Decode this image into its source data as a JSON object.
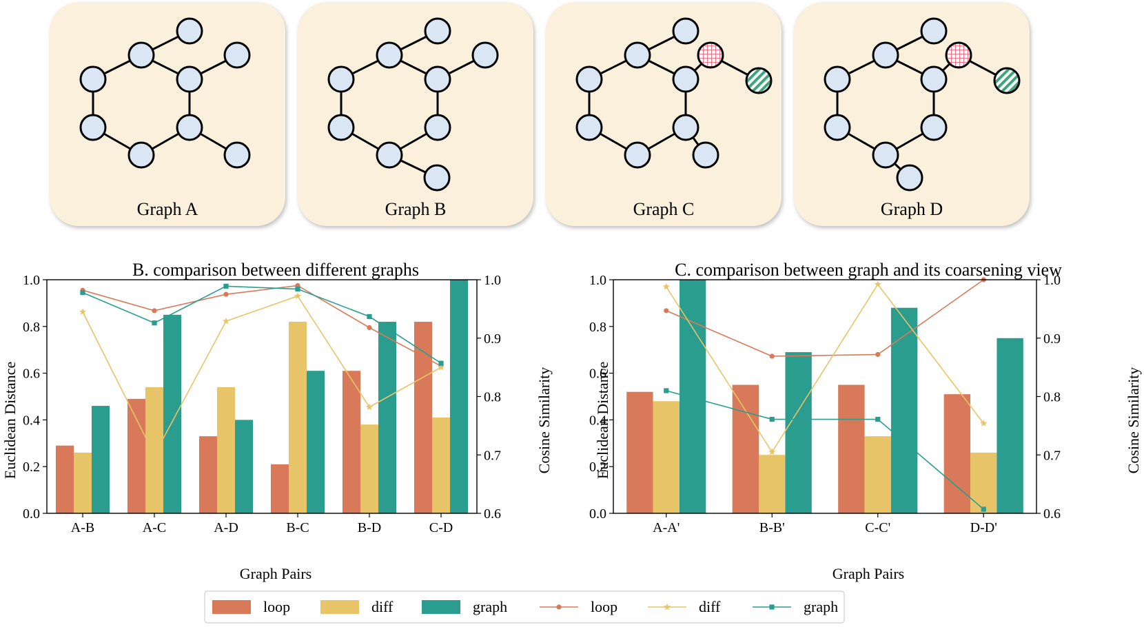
{
  "colors": {
    "loop": "#d87a5a",
    "diff": "#e8c468",
    "graph": "#2a9d8f",
    "panel_bg": "#fbf0dc",
    "node_fill": "#dbe6f5",
    "red_node": "#e8506a",
    "green_node": "#3aa878"
  },
  "graph_panels": [
    {
      "label": "Graph A"
    },
    {
      "label": "Graph B"
    },
    {
      "label": "Graph C"
    },
    {
      "label": "Graph D"
    }
  ],
  "chart_data": [
    {
      "type": "bar",
      "title": "B. comparison between different graphs",
      "xlabel": "Graph Pairs",
      "ylabel": "Euclidean Distance",
      "y2label": "Cosine Similarity",
      "ylim": [
        0,
        1.0
      ],
      "y2lim": [
        0.6,
        1.0
      ],
      "yticks": [
        "0.0",
        "0.2",
        "0.4",
        "0.6",
        "0.8",
        "1.0"
      ],
      "y2ticks": [
        "0.6",
        "0.7",
        "0.8",
        "0.9",
        "1.0"
      ],
      "categories": [
        "A-B",
        "A-C",
        "A-D",
        "B-C",
        "B-D",
        "C-D"
      ],
      "bar_series": [
        {
          "name": "loop",
          "values": [
            0.29,
            0.49,
            0.33,
            0.21,
            0.61,
            0.82
          ]
        },
        {
          "name": "diff",
          "values": [
            0.26,
            0.54,
            0.54,
            0.82,
            0.38,
            0.41
          ]
        },
        {
          "name": "graph",
          "values": [
            0.46,
            0.85,
            0.4,
            0.61,
            0.82,
            1.0
          ]
        }
      ],
      "line_series": [
        {
          "name": "loop",
          "marker": "circle",
          "values": [
            0.982,
            0.947,
            0.975,
            0.99,
            0.918,
            0.852
          ]
        },
        {
          "name": "diff",
          "marker": "star",
          "values": [
            0.945,
            0.7,
            0.929,
            0.972,
            0.782,
            0.85
          ]
        },
        {
          "name": "graph",
          "marker": "square",
          "values": [
            0.978,
            0.926,
            0.989,
            0.984,
            0.937,
            0.857
          ]
        }
      ]
    },
    {
      "type": "bar",
      "title": "C. comparison between graph and its coarsening view",
      "xlabel": "Graph Pairs",
      "ylabel": "Euclidean Distance",
      "y2label": "Cosine Similarity",
      "ylim": [
        0,
        1.0
      ],
      "y2lim": [
        0.6,
        1.0
      ],
      "yticks": [
        "0.0",
        "0.2",
        "0.4",
        "0.6",
        "0.8",
        "1.0"
      ],
      "y2ticks": [
        "0.6",
        "0.7",
        "0.8",
        "0.9",
        "1.0"
      ],
      "categories": [
        "A-A'",
        "B-B'",
        "C-C'",
        "D-D'"
      ],
      "bar_series": [
        {
          "name": "loop",
          "values": [
            0.52,
            0.55,
            0.55,
            0.51
          ]
        },
        {
          "name": "diff",
          "values": [
            0.48,
            0.25,
            0.33,
            0.26
          ]
        },
        {
          "name": "graph",
          "values": [
            1.0,
            0.69,
            0.88,
            0.75
          ]
        }
      ],
      "line_series": [
        {
          "name": "loop",
          "marker": "circle",
          "values": [
            0.947,
            0.869,
            0.872,
            1.0
          ]
        },
        {
          "name": "diff",
          "marker": "star",
          "values": [
            0.988,
            0.705,
            0.992,
            0.754
          ]
        },
        {
          "name": "graph",
          "marker": "square",
          "values": [
            0.81,
            0.761,
            0.761,
            0.607
          ]
        }
      ]
    }
  ],
  "legend": {
    "placement": "bottom-center",
    "entries": [
      {
        "label": "loop",
        "kind": "bar",
        "series": "loop"
      },
      {
        "label": "diff",
        "kind": "bar",
        "series": "diff"
      },
      {
        "label": "graph",
        "kind": "bar",
        "series": "graph"
      },
      {
        "label": "loop",
        "kind": "line",
        "series": "loop"
      },
      {
        "label": "diff",
        "kind": "line",
        "series": "diff"
      },
      {
        "label": "graph",
        "kind": "line",
        "series": "graph"
      }
    ]
  }
}
